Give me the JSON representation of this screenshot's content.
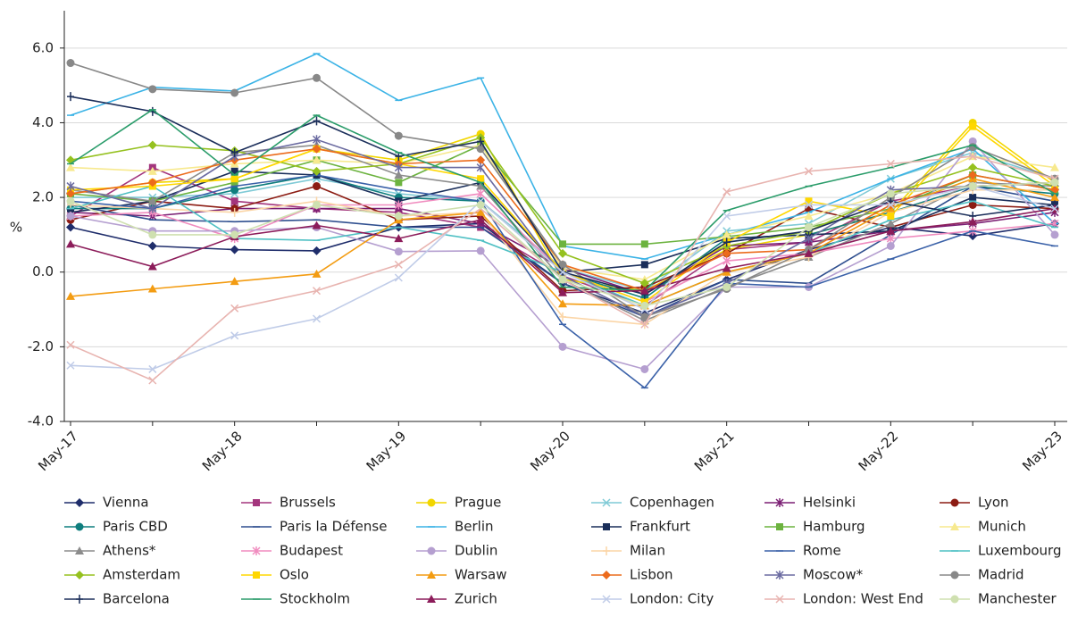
{
  "chart_data": {
    "type": "line",
    "y_label": "%",
    "categories": [
      "May-17",
      null,
      "May-18",
      null,
      "May-19",
      null,
      "May-20",
      null,
      "May-21",
      null,
      "May-22",
      null,
      "May-23"
    ],
    "ylim": [
      -4,
      7
    ],
    "yticks": [
      {
        "value": -4,
        "label": "-4.0"
      },
      {
        "value": -2,
        "label": "-2.0"
      },
      {
        "value": 0,
        "label": "0.0"
      },
      {
        "value": 2,
        "label": "2.0"
      },
      {
        "value": 4,
        "label": "4.0"
      },
      {
        "value": 6,
        "label": "6.0"
      }
    ],
    "grid": true,
    "legend": "bottom",
    "series": [
      {
        "name": "Vienna",
        "color": "#1f2d6b",
        "marker": "diamond",
        "values": [
          1.2,
          0.7,
          0.6,
          0.57,
          1.2,
          1.3,
          -0.3,
          -1.1,
          -0.2,
          0.6,
          1.2,
          0.97,
          1.3
        ]
      },
      {
        "name": "Brussels",
        "color": "#a3357d",
        "marker": "square",
        "values": [
          1.5,
          2.8,
          1.9,
          1.7,
          1.6,
          1.2,
          -0.1,
          -0.9,
          0.6,
          0.8,
          1.9,
          2.3,
          2.4
        ]
      },
      {
        "name": "Prague",
        "color": "#f2d600",
        "marker": "circle",
        "values": [
          2.1,
          2.4,
          2.5,
          3.3,
          3.0,
          3.7,
          -0.2,
          -0.5,
          0.6,
          1.0,
          1.6,
          4.0,
          2.4
        ]
      },
      {
        "name": "Copenhagen",
        "color": "#7fcad6",
        "marker": "x",
        "values": [
          2.0,
          2.0,
          2.1,
          2.5,
          2.1,
          1.9,
          0.1,
          -0.5,
          1.1,
          1.3,
          2.5,
          3.2,
          2.5
        ]
      },
      {
        "name": "Helsinki",
        "color": "#7b1f74",
        "marker": "star",
        "values": [
          1.6,
          1.5,
          1.7,
          1.7,
          1.7,
          1.3,
          0.1,
          -0.6,
          0.7,
          0.8,
          1.1,
          1.3,
          1.6
        ]
      },
      {
        "name": "Lyon",
        "color": "#8c1c13",
        "marker": "circle",
        "values": [
          1.4,
          1.9,
          1.7,
          2.3,
          1.4,
          1.5,
          -0.5,
          -0.4,
          0.5,
          1.7,
          1.2,
          1.8,
          1.7
        ]
      },
      {
        "name": "Paris CBD",
        "color": "#0f7e7e",
        "marker": "circle",
        "values": [
          1.7,
          1.7,
          2.2,
          2.6,
          2.0,
          1.9,
          0.0,
          -0.7,
          0.9,
          1.0,
          1.6,
          2.3,
          2.1
        ]
      },
      {
        "name": "Paris la Défense",
        "color": "#2f4f8f",
        "marker": "dash",
        "values": [
          1.8,
          1.4,
          1.35,
          1.4,
          1.2,
          1.2,
          -0.3,
          -1.2,
          -0.2,
          -0.3,
          1.0,
          2.3,
          1.9
        ]
      },
      {
        "name": "Berlin",
        "color": "#3bb3e6",
        "marker": "dash",
        "values": [
          4.2,
          4.95,
          4.85,
          5.85,
          4.6,
          5.2,
          0.7,
          0.35,
          1.0,
          1.6,
          2.5,
          3.3,
          1.3
        ]
      },
      {
        "name": "Frankfurt",
        "color": "#1a2e5a",
        "marker": "square",
        "values": [
          1.6,
          1.9,
          2.7,
          2.6,
          1.9,
          2.4,
          0.0,
          0.2,
          0.9,
          1.0,
          1.1,
          2.0,
          1.8
        ]
      },
      {
        "name": "Hamburg",
        "color": "#6cb33f",
        "marker": "square",
        "values": [
          2.1,
          1.9,
          2.4,
          3.0,
          2.4,
          3.4,
          0.75,
          0.75,
          0.95,
          1.2,
          1.7,
          2.6,
          2.2
        ]
      },
      {
        "name": "Munich",
        "color": "#f7e98e",
        "marker": "triangle",
        "values": [
          2.8,
          2.7,
          2.9,
          3.0,
          2.9,
          3.4,
          0.1,
          -0.2,
          1.0,
          1.5,
          2.1,
          3.1,
          2.8
        ]
      },
      {
        "name": "Athens*",
        "color": "#8c8c8c",
        "marker": "triangle",
        "values": [
          2.2,
          1.9,
          3.2,
          3.4,
          2.6,
          2.3,
          -0.2,
          -1.3,
          -0.4,
          0.4,
          1.3,
          2.4,
          2.3
        ]
      },
      {
        "name": "Budapest",
        "color": "#f08cbf",
        "marker": "star",
        "values": [
          1.5,
          1.6,
          0.9,
          1.8,
          1.8,
          2.1,
          0.0,
          -0.8,
          0.3,
          0.5,
          0.9,
          1.1,
          1.3
        ]
      },
      {
        "name": "Dublin",
        "color": "#b59fd0",
        "marker": "circle",
        "values": [
          1.5,
          1.1,
          1.1,
          1.2,
          0.55,
          0.57,
          -2.0,
          -2.6,
          -0.4,
          -0.4,
          0.7,
          3.5,
          1.0
        ]
      },
      {
        "name": "Milan",
        "color": "#fbd5a6",
        "marker": "plus",
        "values": [
          1.8,
          1.7,
          1.6,
          1.9,
          1.5,
          1.6,
          -1.2,
          -1.4,
          0.0,
          0.4,
          1.6,
          2.2,
          2.2
        ]
      },
      {
        "name": "Rome",
        "color": "#3a61a8",
        "marker": "dash",
        "values": [
          1.9,
          1.7,
          2.3,
          2.6,
          2.2,
          1.9,
          -1.4,
          -3.1,
          -0.3,
          -0.4,
          0.35,
          1.1,
          0.7
        ]
      },
      {
        "name": "Luxembourg",
        "color": "#4fc0c4",
        "marker": "dash",
        "values": [
          1.7,
          2.3,
          0.9,
          0.85,
          1.2,
          0.85,
          0.0,
          -0.9,
          0.0,
          0.5,
          1.4,
          1.9,
          1.2
        ]
      },
      {
        "name": "Amsterdam",
        "color": "#95c11f",
        "marker": "diamond",
        "values": [
          3.0,
          3.4,
          3.25,
          2.7,
          2.9,
          3.6,
          0.5,
          -0.3,
          0.7,
          1.1,
          2.1,
          2.8,
          2.3
        ]
      },
      {
        "name": "Oslo",
        "color": "#ffd700",
        "marker": "square",
        "values": [
          2.2,
          2.3,
          2.5,
          3.3,
          2.9,
          2.5,
          0.0,
          -0.8,
          0.8,
          1.9,
          1.5,
          3.9,
          2.3
        ]
      },
      {
        "name": "Warsaw",
        "color": "#f39c12",
        "marker": "triangle",
        "values": [
          -0.65,
          -0.45,
          -0.25,
          -0.05,
          1.4,
          1.6,
          -0.85,
          -0.9,
          0.0,
          0.5,
          1.7,
          2.5,
          2.0
        ]
      },
      {
        "name": "Lisbon",
        "color": "#ec6b1c",
        "marker": "diamond",
        "values": [
          2.1,
          2.4,
          3.0,
          3.3,
          2.9,
          3.0,
          0.2,
          -0.5,
          0.5,
          0.6,
          1.8,
          2.6,
          2.2
        ]
      },
      {
        "name": "Moscow*",
        "color": "#6a6aa0",
        "marker": "star",
        "values": [
          2.3,
          1.7,
          3.1,
          3.55,
          2.8,
          2.8,
          -0.1,
          -1.2,
          -0.3,
          0.9,
          2.2,
          2.3,
          2.4
        ]
      },
      {
        "name": "Madrid",
        "color": "#888888",
        "marker": "circle",
        "values": [
          5.6,
          4.9,
          4.8,
          5.2,
          3.65,
          3.3,
          0.2,
          -1.2,
          -0.45,
          0.6,
          2.0,
          3.35,
          2.5
        ]
      },
      {
        "name": "Barcelona",
        "color": "#1b2e5a",
        "marker": "plus",
        "values": [
          4.7,
          4.3,
          3.2,
          4.05,
          3.1,
          3.5,
          0.0,
          -0.6,
          0.8,
          1.1,
          1.9,
          1.5,
          1.8
        ]
      },
      {
        "name": "Stockholm",
        "color": "#2a9c6a",
        "marker": "dash",
        "values": [
          2.9,
          4.35,
          2.6,
          4.2,
          3.2,
          2.4,
          -0.4,
          -0.5,
          1.65,
          2.3,
          2.8,
          3.4,
          2.1
        ]
      },
      {
        "name": "Zurich",
        "color": "#8c1c5a",
        "marker": "triangle",
        "values": [
          0.75,
          0.15,
          0.95,
          1.25,
          0.9,
          1.4,
          -0.55,
          -0.5,
          0.1,
          0.5,
          1.1,
          1.35,
          1.7
        ]
      },
      {
        "name": "London: City",
        "color": "#c0cce8",
        "marker": "x",
        "values": [
          -2.5,
          -2.6,
          -1.7,
          -1.25,
          -0.15,
          1.9,
          0.0,
          -1.0,
          1.5,
          1.8,
          1.8,
          2.3,
          1.7
        ]
      },
      {
        "name": "London: West End",
        "color": "#e8b4b0",
        "marker": "x",
        "values": [
          -1.95,
          -2.9,
          -0.97,
          -0.5,
          0.2,
          1.7,
          -0.2,
          -1.4,
          2.15,
          2.7,
          2.9,
          3.1,
          2.5
        ]
      },
      {
        "name": "Manchester",
        "color": "#cfe0b0",
        "marker": "circle",
        "values": [
          1.9,
          1.0,
          1.0,
          1.8,
          1.5,
          1.8,
          -0.2,
          -0.9,
          -0.4,
          1.2,
          2.1,
          2.3,
          2.4
        ]
      }
    ]
  }
}
